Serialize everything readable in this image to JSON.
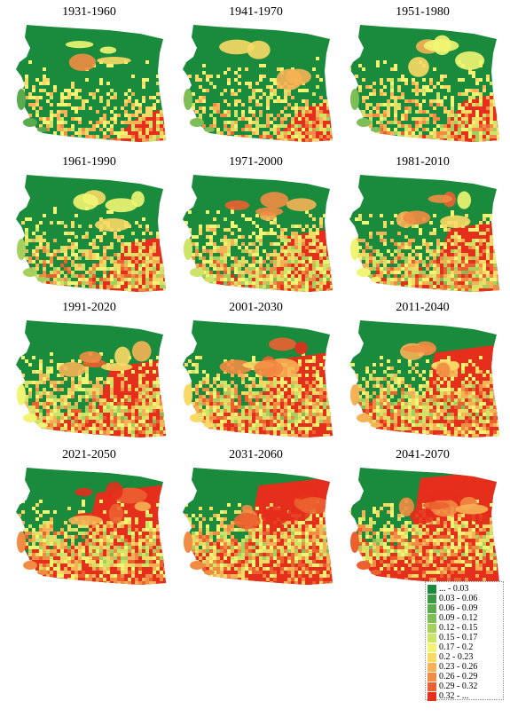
{
  "panels": [
    {
      "title": "1931-1960",
      "variant": 0
    },
    {
      "title": "1941-1970",
      "variant": 1
    },
    {
      "title": "1951-1980",
      "variant": 2
    },
    {
      "title": "1961-1990",
      "variant": 3
    },
    {
      "title": "1971-2000",
      "variant": 4
    },
    {
      "title": "1981-2010",
      "variant": 5
    },
    {
      "title": "1991-2020",
      "variant": 6
    },
    {
      "title": "2001-2030",
      "variant": 7
    },
    {
      "title": "2011-2040",
      "variant": 8
    },
    {
      "title": "2021-2050",
      "variant": 9
    },
    {
      "title": "2031-2060",
      "variant": 10
    },
    {
      "title": "2041-2070",
      "variant": 11
    }
  ],
  "legend": [
    {
      "label": "... - 0.03",
      "color": "#1a8a3c"
    },
    {
      "label": "0.03 - 0.06",
      "color": "#3c9a46"
    },
    {
      "label": "0.06 - 0.09",
      "color": "#5aaa4e"
    },
    {
      "label": "0.09 - 0.12",
      "color": "#7fbd56"
    },
    {
      "label": "0.12 - 0.15",
      "color": "#a6d05e"
    },
    {
      "label": "0.15 - 0.17",
      "color": "#cce468"
    },
    {
      "label": "0.17 - 0.2",
      "color": "#f1f573"
    },
    {
      "label": "0.2 - 0.23",
      "color": "#f9d966"
    },
    {
      "label": "0.23 - 0.26",
      "color": "#f7b255"
    },
    {
      "label": "0.26 - 0.29",
      "color": "#f28b43"
    },
    {
      "label": "0.29 - 0.32",
      "color": "#ec6030"
    },
    {
      "label": "0.32 - ...",
      "color": "#e62e1c"
    }
  ]
}
